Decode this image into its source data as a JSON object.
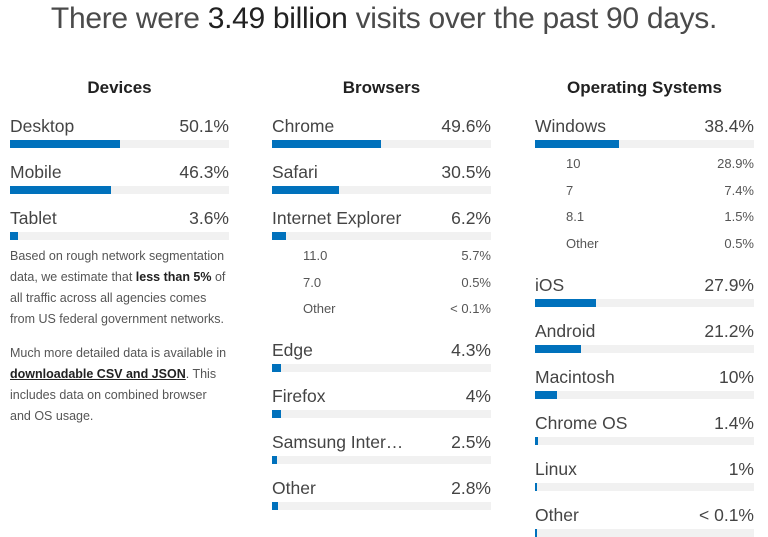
{
  "header": {
    "prefix": "There were ",
    "highlight": "3.49 billion",
    "suffix": " visits over the past 90 days."
  },
  "accent_color": "#0071bc",
  "columns": [
    {
      "title": "Devices",
      "items": [
        {
          "label": "Desktop",
          "value": "50.1%",
          "pct": 50.1
        },
        {
          "label": "Mobile",
          "value": "46.3%",
          "pct": 46.3
        },
        {
          "label": "Tablet",
          "value": "3.6%",
          "pct": 3.6
        }
      ]
    },
    {
      "title": "Browsers",
      "items": [
        {
          "label": "Chrome",
          "value": "49.6%",
          "pct": 49.6
        },
        {
          "label": "Safari",
          "value": "30.5%",
          "pct": 30.5
        },
        {
          "label": "Internet Explorer",
          "value": "6.2%",
          "pct": 6.2,
          "subs": [
            {
              "label": "11.0",
              "value": "5.7%"
            },
            {
              "label": "7.0",
              "value": "0.5%"
            },
            {
              "label": "Other",
              "value": "< 0.1%"
            }
          ]
        },
        {
          "label": "Edge",
          "value": "4.3%",
          "pct": 4.3
        },
        {
          "label": "Firefox",
          "value": "4%",
          "pct": 4
        },
        {
          "label": "Samsung Inter…",
          "value": "2.5%",
          "pct": 2.5
        },
        {
          "label": "Other",
          "value": "2.8%",
          "pct": 2.8
        }
      ]
    },
    {
      "title": "Operating Systems",
      "items": [
        {
          "label": "Windows",
          "value": "38.4%",
          "pct": 38.4,
          "subs": [
            {
              "label": "10",
              "value": "28.9%"
            },
            {
              "label": "7",
              "value": "7.4%"
            },
            {
              "label": "8.1",
              "value": "1.5%"
            },
            {
              "label": "Other",
              "value": "0.5%"
            }
          ]
        },
        {
          "label": "iOS",
          "value": "27.9%",
          "pct": 27.9
        },
        {
          "label": "Android",
          "value": "21.2%",
          "pct": 21.2
        },
        {
          "label": "Macintosh",
          "value": "10%",
          "pct": 10
        },
        {
          "label": "Chrome OS",
          "value": "1.4%",
          "pct": 1.4
        },
        {
          "label": "Linux",
          "value": "1%",
          "pct": 1
        },
        {
          "label": "Other",
          "value": "< 0.1%",
          "pct": 0.05
        }
      ]
    }
  ],
  "note": {
    "p1_before": "Based on rough network segmentation data, we estimate that ",
    "p1_bold": "less than 5%",
    "p1_after": " of all traffic across all agencies comes from US federal government networks.",
    "p2_before": "Much more detailed data is available in ",
    "p2_link": "downloadable CSV and JSON",
    "p2_after": ". This includes data on combined browser and OS usage."
  }
}
